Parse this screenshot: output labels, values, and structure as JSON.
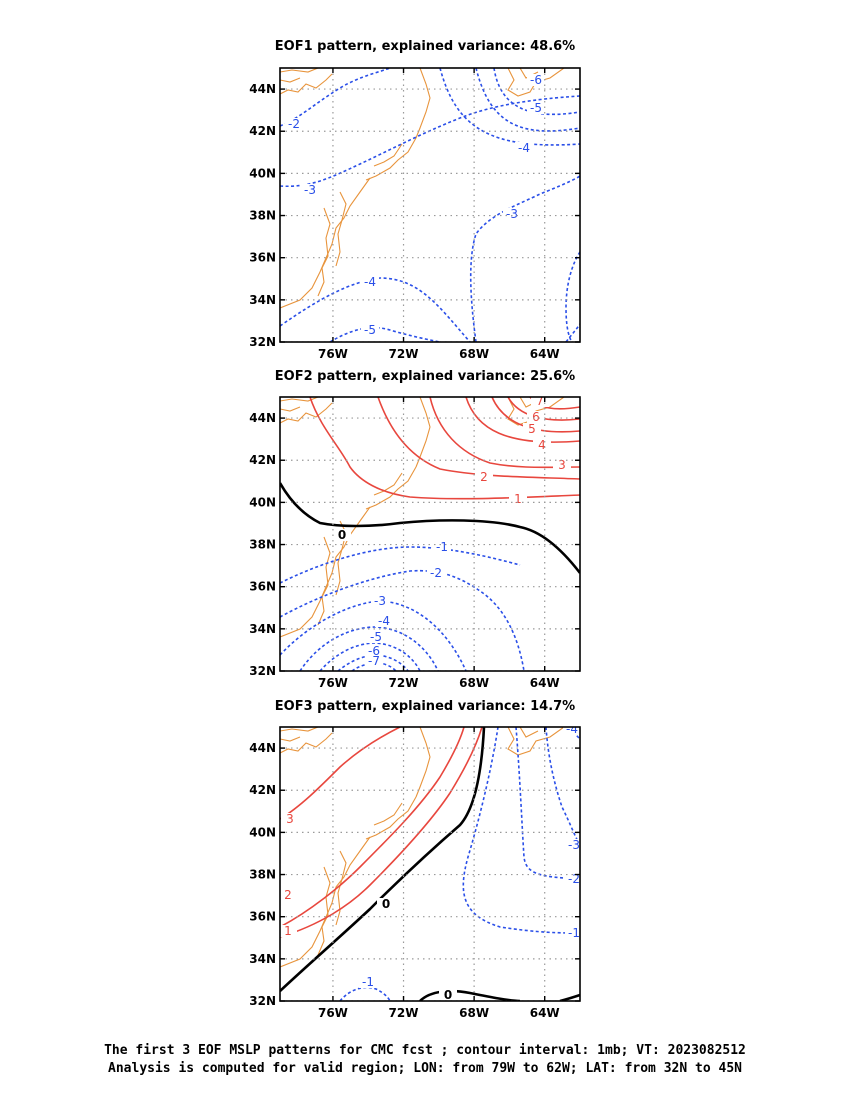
{
  "chart_data": [
    {
      "type": "contour-map",
      "title": "EOF1 pattern, explained variance: 48.6%",
      "x_ticks": [
        "76W",
        "72W",
        "68W",
        "64W"
      ],
      "y_ticks": [
        "44N",
        "42N",
        "40N",
        "38N",
        "36N",
        "34N",
        "32N"
      ],
      "xlim": [
        -79,
        -62
      ],
      "ylim": [
        32,
        45
      ],
      "grid": true,
      "contour_levels_shown": [
        -6,
        -5,
        -4,
        -3,
        -2
      ],
      "colors": {
        "positive": "#e8473e",
        "negative": "#2a4fe8",
        "zero": "#000000",
        "coast": "#e8943c"
      }
    },
    {
      "type": "contour-map",
      "title": "EOF2 pattern, explained variance: 25.6%",
      "x_ticks": [
        "76W",
        "72W",
        "68W",
        "64W"
      ],
      "y_ticks": [
        "44N",
        "42N",
        "40N",
        "38N",
        "36N",
        "34N",
        "32N"
      ],
      "xlim": [
        -79,
        -62
      ],
      "ylim": [
        32,
        45
      ],
      "grid": true,
      "contour_levels_shown": [
        7,
        6,
        5,
        4,
        3,
        2,
        1,
        0,
        -1,
        -2,
        -3,
        -4,
        -5,
        -6,
        -7
      ],
      "colors": {
        "positive": "#e8473e",
        "negative": "#2a4fe8",
        "zero": "#000000",
        "coast": "#e8943c"
      }
    },
    {
      "type": "contour-map",
      "title": "EOF3 pattern, explained variance: 14.7%",
      "x_ticks": [
        "76W",
        "72W",
        "68W",
        "64W"
      ],
      "y_ticks": [
        "44N",
        "42N",
        "40N",
        "38N",
        "36N",
        "34N",
        "32N"
      ],
      "xlim": [
        -79,
        -62
      ],
      "ylim": [
        32,
        45
      ],
      "grid": true,
      "contour_levels_shown": [
        3,
        2,
        1,
        0,
        -1,
        -2,
        -3,
        -4
      ],
      "colors": {
        "positive": "#e8473e",
        "negative": "#2a4fe8",
        "zero": "#000000",
        "coast": "#e8943c"
      }
    }
  ],
  "caption": {
    "line1": "The first 3 EOF MSLP patterns for CMC fcst ; contour interval: 1mb; VT: 2023082512",
    "line2": "Analysis is computed for valid region; LON: from 79W to 62W; LAT: from 32N to 45N"
  }
}
